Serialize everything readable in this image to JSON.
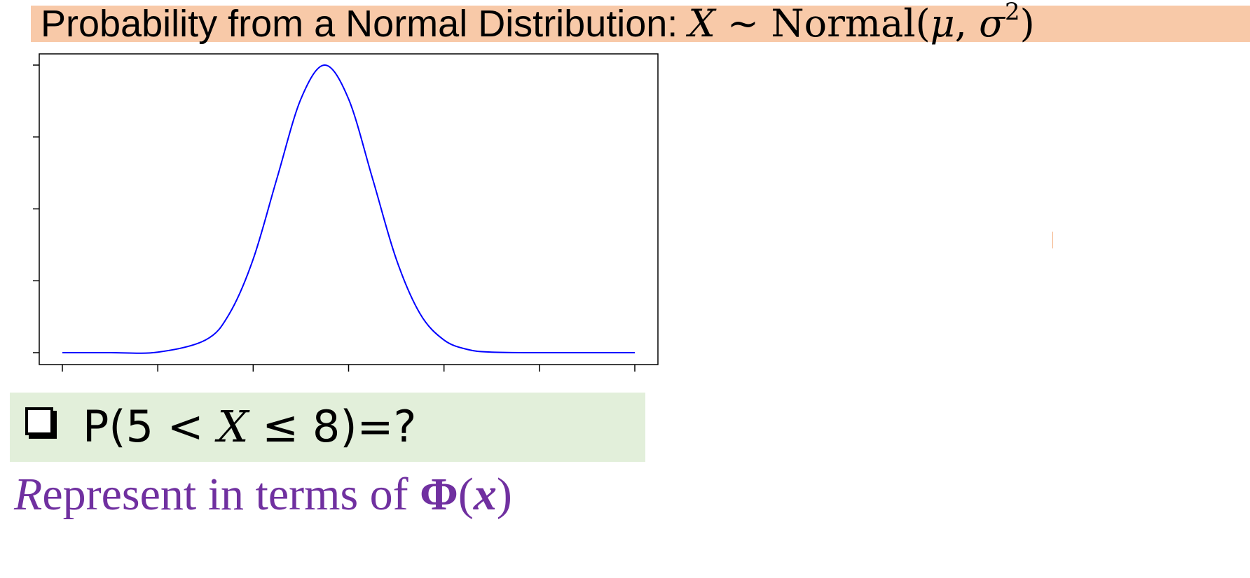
{
  "slide": {
    "title_plain": "Probability from a Normal Distribution: ",
    "title_var": "X",
    "title_tilde": " ~ ",
    "title_dist": "Normal(",
    "title_mu": "μ",
    "title_comma": ", ",
    "title_sigma": "σ",
    "title_exp": "2",
    "title_close": ")",
    "question_prefix": "P(5 < ",
    "question_var": "X",
    "question_suffix": " ≤ 8)=?",
    "represent_first": "R",
    "represent_rest": "epresent in terms of ",
    "represent_phi": "Φ",
    "represent_open": "(",
    "represent_x": "x",
    "represent_close": ")"
  },
  "colors": {
    "title_band": "#f8c9a8",
    "question_band": "#e2efda",
    "represent_text": "#7030a0",
    "curve": "#0000ff"
  },
  "chart_data": {
    "type": "line",
    "title": "",
    "xlabel": "",
    "ylabel": "",
    "x_ticks_count": 7,
    "y_ticks_count": 5,
    "tick_labels_shown": false,
    "grid": false,
    "legend": "none",
    "xlim": [
      0,
      6
    ],
    "ylim": [
      0,
      1
    ],
    "series": [
      {
        "color": "#0000ff",
        "x": [
          0,
          0.5,
          1,
          1.5,
          1.75,
          2,
          2.25,
          2.5,
          2.75,
          3,
          3.25,
          3.5,
          3.75,
          4,
          4.25,
          4.5,
          5,
          5.5,
          6
        ],
        "values": [
          0.0,
          0.0,
          0.002,
          0.044,
          0.135,
          0.325,
          0.607,
          0.882,
          1.0,
          0.882,
          0.607,
          0.325,
          0.135,
          0.044,
          0.011,
          0.002,
          0.0,
          0.0,
          0.0
        ]
      }
    ]
  }
}
